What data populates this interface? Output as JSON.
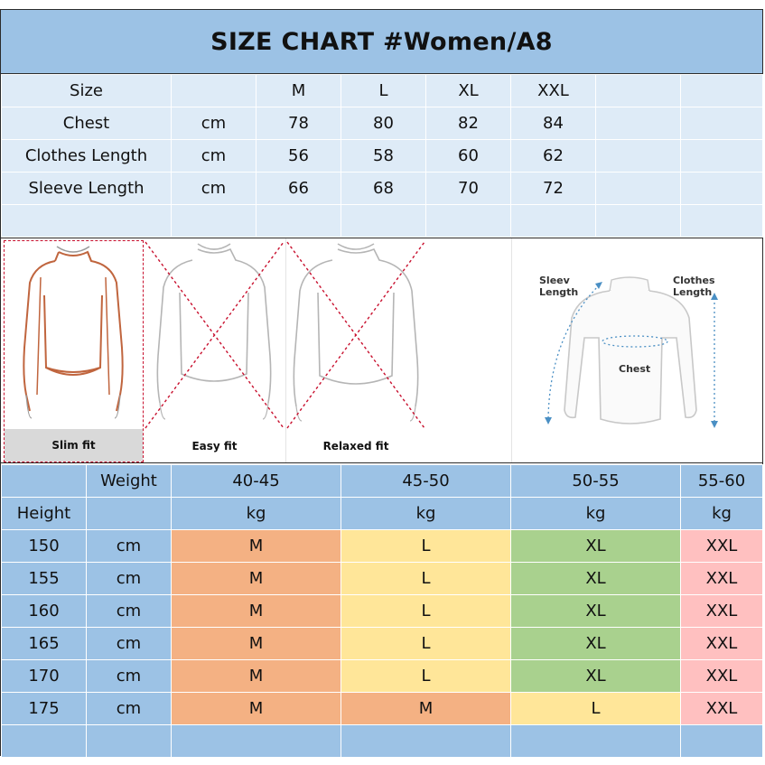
{
  "title": "SIZE CHART #Women/A8",
  "measurements": {
    "header": [
      "Size",
      "",
      "M",
      "L",
      "XL",
      "XXL",
      "",
      ""
    ],
    "rows": [
      [
        "Chest",
        "cm",
        "78",
        "80",
        "82",
        "84",
        "",
        ""
      ],
      [
        "Clothes Length",
        "cm",
        "56",
        "58",
        "60",
        "62",
        "",
        ""
      ],
      [
        "Sleeve Length",
        "cm",
        "66",
        "68",
        "70",
        "72",
        "",
        ""
      ]
    ]
  },
  "fits": {
    "slim": "Slim fit",
    "easy": "Easy fit",
    "relaxed": "Relaxed fit"
  },
  "diagram": {
    "sleeve": "Sleev\nLength",
    "clothes": "Clothes\nLength",
    "chest": "Chest"
  },
  "height_weight": {
    "weight_label": "Weight",
    "height_label": "Height",
    "weights": [
      "40-45",
      "45-50",
      "50-55",
      "55-60"
    ],
    "weight_unit": "kg",
    "height_unit": "cm",
    "rows": [
      {
        "height": "150",
        "sizes": [
          "M",
          "L",
          "XL",
          "XXL"
        ]
      },
      {
        "height": "155",
        "sizes": [
          "M",
          "L",
          "XL",
          "XXL"
        ]
      },
      {
        "height": "160",
        "sizes": [
          "M",
          "L",
          "XL",
          "XXL"
        ]
      },
      {
        "height": "165",
        "sizes": [
          "M",
          "L",
          "XL",
          "XXL"
        ]
      },
      {
        "height": "170",
        "sizes": [
          "M",
          "L",
          "XL",
          "XXL"
        ]
      },
      {
        "height": "175",
        "sizes": [
          "M",
          "M",
          "L",
          "XXL"
        ]
      }
    ]
  },
  "colors": {
    "header_blue": "#9cc2e5",
    "light_blue": "#deebf7",
    "M": "#f4b183",
    "L": "#ffe699",
    "XL": "#a9d18e",
    "XXL": "#ffc0c0",
    "fit_cross": "#c8102e"
  }
}
